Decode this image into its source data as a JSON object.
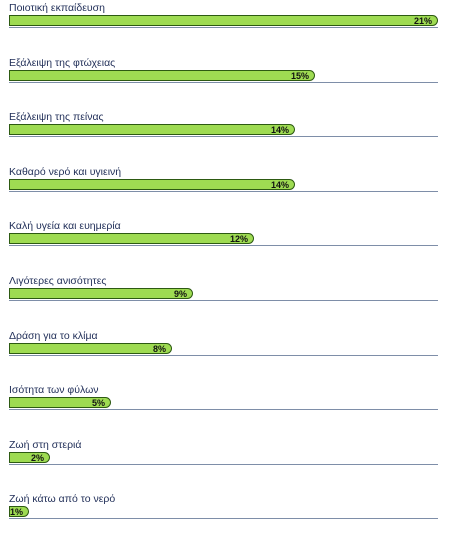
{
  "chart_data": {
    "type": "bar",
    "orientation": "horizontal",
    "categories": [
      "Ποιοτική εκπαίδευση",
      "Εξάλειψη της φτώχειας",
      "Εξάλειψη της πείνας",
      "Καθαρό νερό και υγιεινή",
      "Καλή υγεία και ευημερία",
      "Λιγότερες ανισότητες",
      "Δράση για το κλίμα",
      "Ισότητα των φύλων",
      "Ζωή στη στεριά",
      "Ζωή κάτω από το νερό"
    ],
    "values": [
      21,
      15,
      14,
      14,
      12,
      9,
      8,
      5,
      2,
      1
    ],
    "value_labels": [
      "21%",
      "15%",
      "14%",
      "14%",
      "12%",
      "9%",
      "8%",
      "5%",
      "2%",
      "1%"
    ],
    "xlim": [
      0,
      21
    ],
    "title": "",
    "xlabel": "",
    "ylabel": "",
    "grid": false,
    "legend": "none"
  },
  "colors": {
    "bar_fill": "#9edb52",
    "bar_border": "#2d5a12",
    "label_text": "#1f2d57",
    "track_line": "#7e8ea8"
  }
}
